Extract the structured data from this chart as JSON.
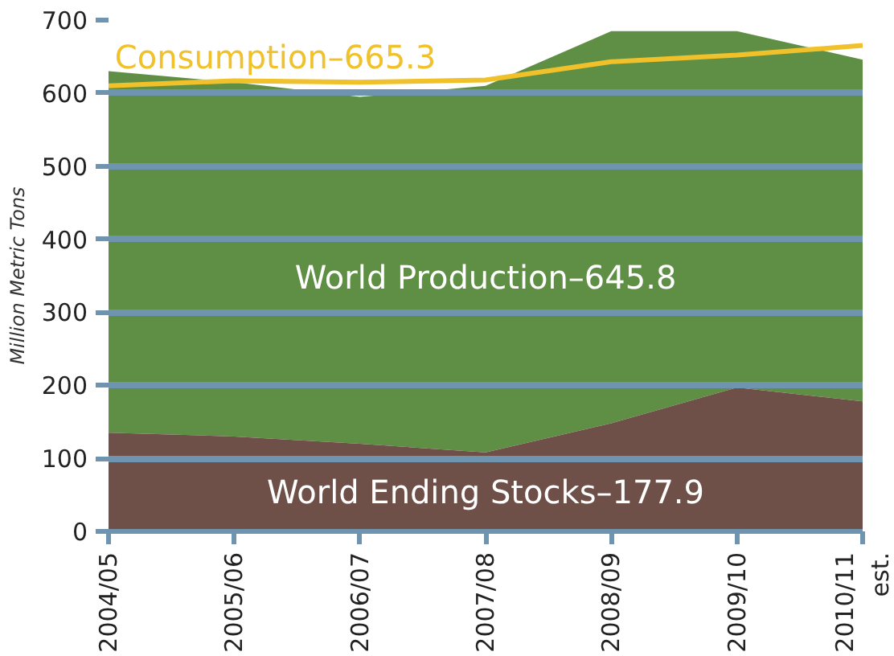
{
  "chart_data": {
    "type": "area",
    "ylabel": "Million Metric Tons",
    "categories": [
      "2004/05",
      "2005/06",
      "2006/07",
      "2007/08",
      "2008/09",
      "2009/10",
      "2010/11\nest."
    ],
    "series": [
      {
        "name": "World Production–645.8",
        "color": "#5f8f44",
        "values": [
          630,
          615,
          595,
          610,
          685,
          685,
          645.8
        ]
      },
      {
        "name": "World Ending Stocks–177.9",
        "color": "#6e5048",
        "values": [
          135,
          130,
          120,
          108,
          148,
          197,
          177.9
        ]
      },
      {
        "name": "Consumption–665.3",
        "type": "line",
        "color": "#f0c12a",
        "values": [
          610,
          617,
          615,
          618,
          643,
          652,
          665.3
        ]
      }
    ],
    "ylim": [
      0,
      700
    ],
    "yticks": [
      0,
      100,
      200,
      300,
      400,
      500,
      600,
      700
    ],
    "grid": "y"
  }
}
